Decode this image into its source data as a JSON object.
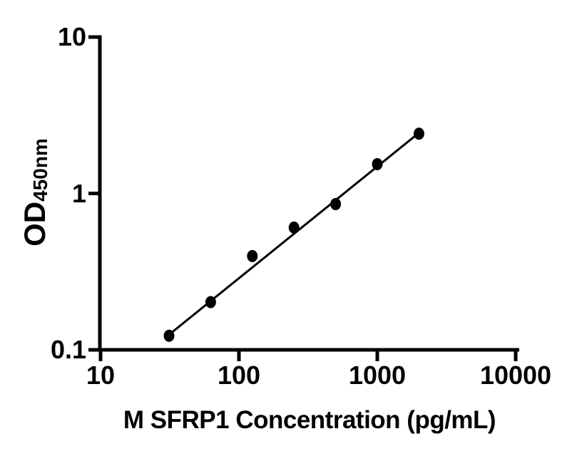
{
  "chart_data": {
    "type": "scatter",
    "title": "",
    "xlabel": "M SFRP1 Concentration (pg/mL)",
    "ylabel": "OD",
    "ylabel_sub": "450nm",
    "x_scale": "log",
    "y_scale": "log",
    "xlim": [
      10,
      10000
    ],
    "ylim": [
      0.1,
      10
    ],
    "x_ticks": [
      "10",
      "100",
      "1000",
      "10000"
    ],
    "y_ticks": [
      "10",
      "1",
      "0.1"
    ],
    "points": [
      {
        "x": 31.25,
        "y": 0.123
      },
      {
        "x": 62.5,
        "y": 0.202
      },
      {
        "x": 125,
        "y": 0.398
      },
      {
        "x": 250,
        "y": 0.605
      },
      {
        "x": 500,
        "y": 0.855
      },
      {
        "x": 1000,
        "y": 1.54
      },
      {
        "x": 2000,
        "y": 2.41
      }
    ],
    "trend_line": {
      "x1": 31.25,
      "y1": 0.125,
      "x2": 2000,
      "y2": 2.44
    },
    "marker": "filled-black-circle",
    "grid": false,
    "legend": null,
    "colors": {
      "marker": "#000000",
      "line": "#000000",
      "axis": "#000000",
      "text": "#000000",
      "background": "#ffffff"
    }
  }
}
